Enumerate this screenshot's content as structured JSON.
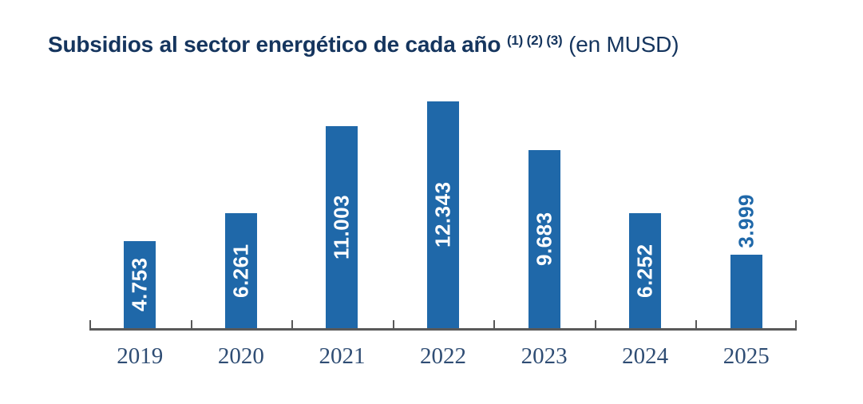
{
  "title": {
    "main": "Subsidios al sector energético de cada año",
    "superscript": "(1) (2) (3)",
    "unit": "(en MUSD)"
  },
  "chart_data": {
    "type": "bar",
    "title": "Subsidios al sector energético de cada año (1) (2) (3) (en MUSD)",
    "categories": [
      "2019",
      "2020",
      "2021",
      "2022",
      "2023",
      "2024",
      "2025"
    ],
    "values": [
      4753,
      6261,
      11003,
      12343,
      9683,
      6252,
      3999
    ],
    "value_labels": [
      "4.753",
      "6.261",
      "11.003",
      "12.343",
      "9.683",
      "6.252",
      "3.999"
    ],
    "label_placement": [
      "inside",
      "inside",
      "inside",
      "inside",
      "inside",
      "inside",
      "outside"
    ],
    "unit": "MUSD",
    "xlabel": "",
    "ylabel": "",
    "ylim": [
      0,
      13500
    ],
    "grid": false,
    "legend": false,
    "colors": {
      "bar": "#1F68A9",
      "value_label_inside": "#FFFFFF",
      "value_label_outside": "#1F68A9",
      "axis": "#595959",
      "title": "#15355E",
      "tick_label": "#2F4D74"
    }
  }
}
